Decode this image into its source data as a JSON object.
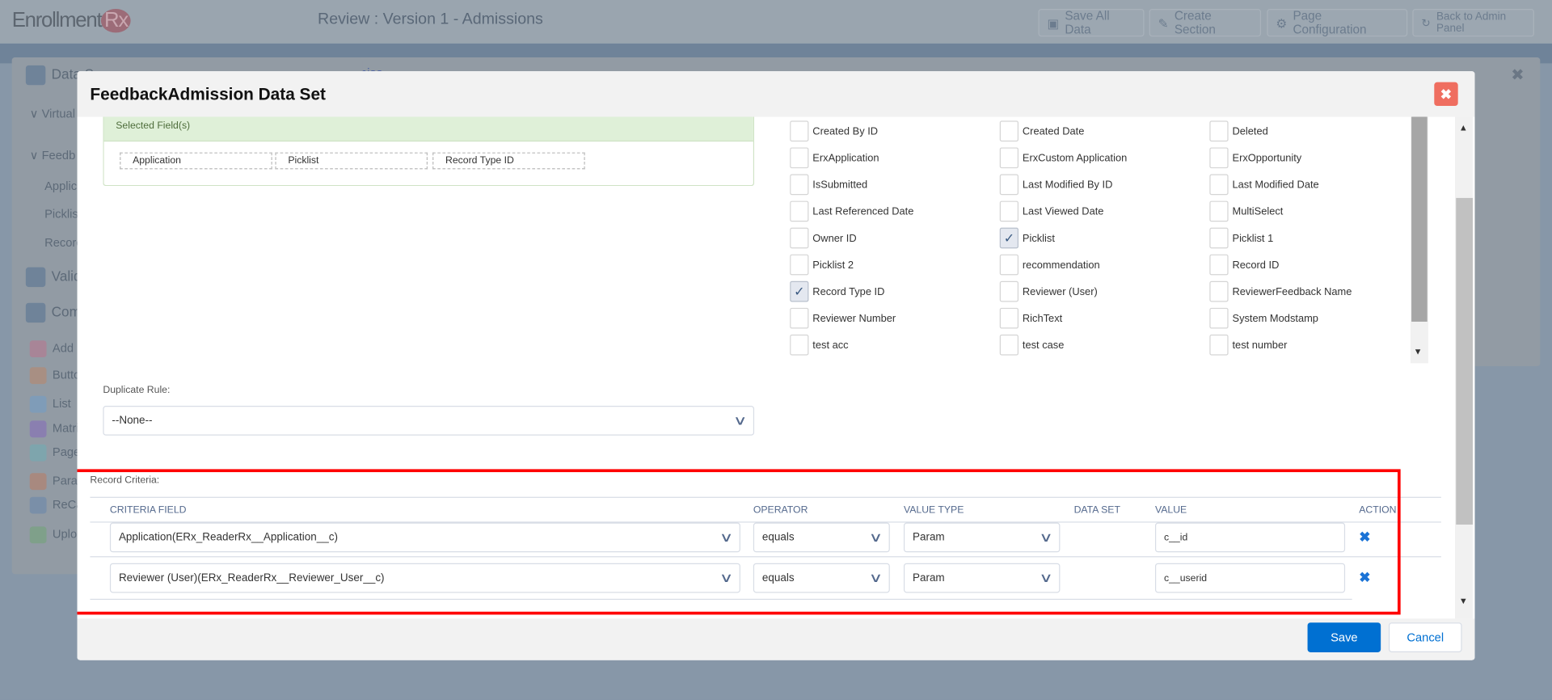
{
  "header": {
    "logo": "EnrollmentRx",
    "title": "Review : Version 1 - Admissions",
    "buttons": [
      {
        "label": "Save All Data",
        "icon": "floppy-icon"
      },
      {
        "label": "Create Section",
        "icon": "edit-document-icon"
      },
      {
        "label": "Page Configuration",
        "icon": "gear-icon"
      },
      {
        "label": "Back to Admin Panel",
        "icon": "refresh-icon"
      }
    ]
  },
  "background": {
    "sidebar": [
      "Data S",
      "Virtual",
      "Feedb",
      "Applica",
      "Picklist",
      "Record",
      "Valid",
      "Com",
      "Add",
      "Butto",
      "List",
      "Matri",
      "Page",
      "Parag",
      "ReCa",
      "Uplo"
    ],
    "panel_title": "Admiss"
  },
  "modal": {
    "title": "FeedbackAdmission Data Set",
    "close_icon": "close-icon",
    "selected_fields": {
      "header": "Selected Field(s)",
      "items": [
        "Application",
        "Picklist",
        "Record Type ID"
      ]
    },
    "fields": [
      {
        "label": "Created By ID",
        "checked": false
      },
      {
        "label": "Created Date",
        "checked": false
      },
      {
        "label": "Deleted",
        "checked": false
      },
      {
        "label": "ErxApplication",
        "checked": false
      },
      {
        "label": "ErxCustom Application",
        "checked": false
      },
      {
        "label": "ErxOpportunity",
        "checked": false
      },
      {
        "label": "IsSubmitted",
        "checked": false
      },
      {
        "label": "Last Modified By ID",
        "checked": false
      },
      {
        "label": "Last Modified Date",
        "checked": false
      },
      {
        "label": "Last Referenced Date",
        "checked": false
      },
      {
        "label": "Last Viewed Date",
        "checked": false
      },
      {
        "label": "MultiSelect",
        "checked": false
      },
      {
        "label": "Owner ID",
        "checked": false
      },
      {
        "label": "Picklist",
        "checked": true
      },
      {
        "label": "Picklist 1",
        "checked": false
      },
      {
        "label": "Picklist 2",
        "checked": false
      },
      {
        "label": "recommendation",
        "checked": false
      },
      {
        "label": "Record ID",
        "checked": false
      },
      {
        "label": "Record Type ID",
        "checked": true
      },
      {
        "label": "Reviewer (User)",
        "checked": false
      },
      {
        "label": "ReviewerFeedback Name",
        "checked": false
      },
      {
        "label": "Reviewer Number",
        "checked": false
      },
      {
        "label": "RichText",
        "checked": false
      },
      {
        "label": "System Modstamp",
        "checked": false
      },
      {
        "label": "test acc",
        "checked": false
      },
      {
        "label": "test case",
        "checked": false
      },
      {
        "label": "test number",
        "checked": false
      }
    ],
    "duplicate_rule": {
      "label": "Duplicate Rule:",
      "value": "--None--"
    },
    "record_criteria": {
      "label": "Record Criteria:",
      "columns": [
        "CRITERIA FIELD",
        "OPERATOR",
        "VALUE TYPE",
        "DATA SET",
        "VALUE",
        "ACTION"
      ],
      "rows": [
        {
          "field": "Application(ERx_ReaderRx__Application__c)",
          "operator": "equals",
          "value_type": "Param",
          "data_set": "",
          "value": "c__id"
        },
        {
          "field": "Reviewer (User)(ERx_ReaderRx__Reviewer_User__c)",
          "operator": "equals",
          "value_type": "Param",
          "data_set": "",
          "value": "c__userid"
        }
      ]
    },
    "footer": {
      "save": "Save",
      "cancel": "Cancel"
    }
  },
  "colors": {
    "primary": "#0070d2",
    "close": "#ef6e60",
    "highlight": "#ff0000",
    "selected_header": "#dff0d8"
  }
}
